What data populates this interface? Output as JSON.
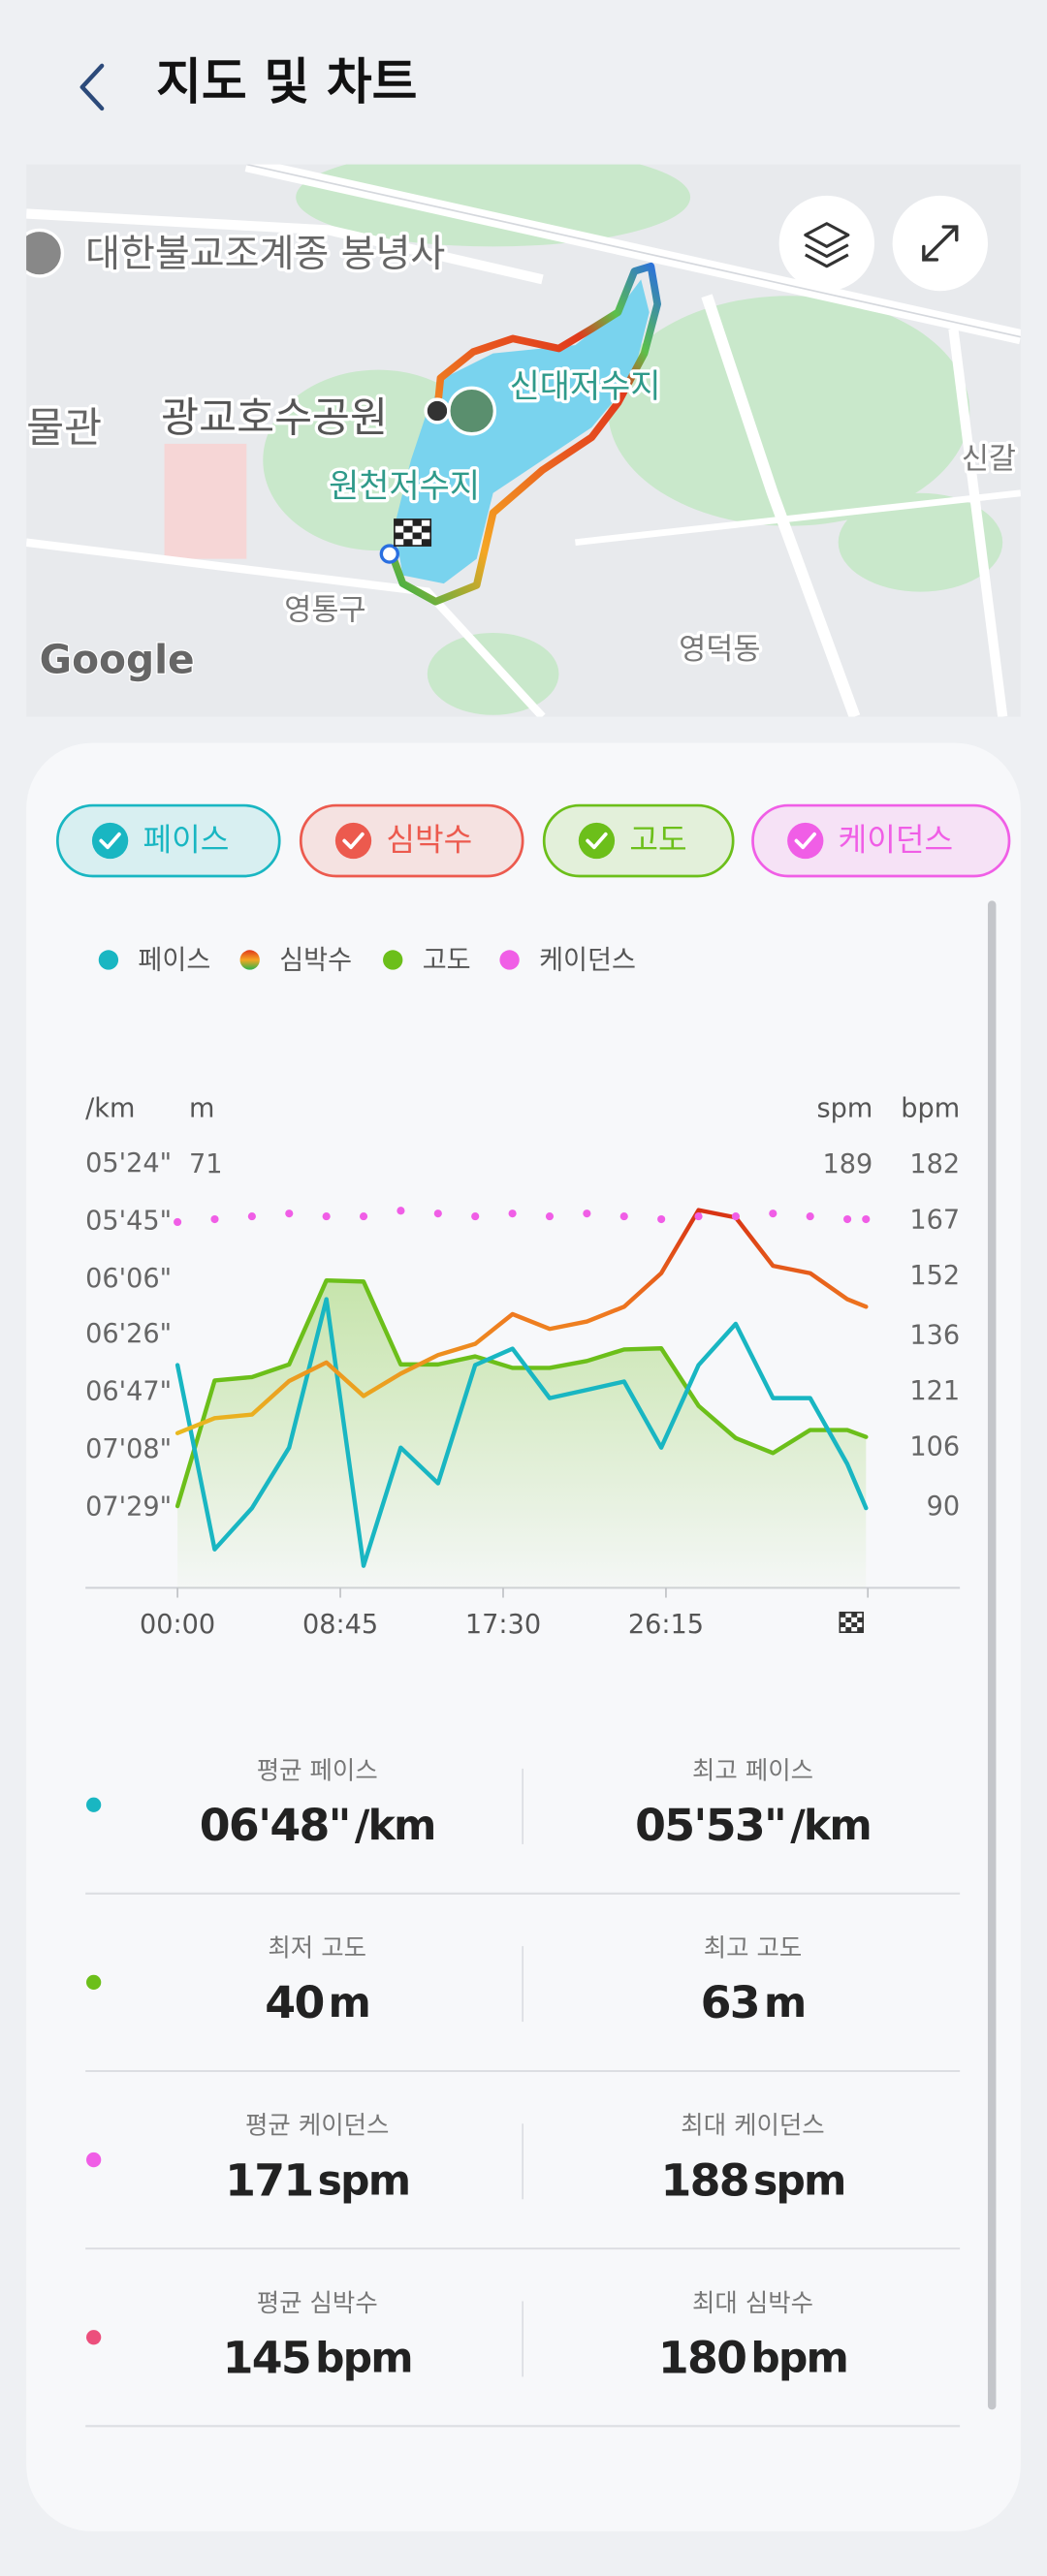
{
  "header": {
    "title": "지도 및 차트"
  },
  "map": {
    "labels": [
      "대한불교조계종 봉녕사",
      "광교호수공원",
      "신대저수지",
      "원천저수지",
      "영통구",
      "영덕동",
      "신갈",
      "물관"
    ],
    "attribution": "Google"
  },
  "chart": {
    "type": "line",
    "x": [
      0,
      2,
      4,
      6,
      8,
      10,
      12,
      14,
      16,
      18,
      20,
      22,
      24,
      26,
      28,
      30,
      32,
      34,
      36,
      37
    ],
    "xlim": [
      0,
      37.1
    ],
    "xticks": [
      {
        "value": 0,
        "label": "00:00"
      },
      {
        "value": 8.75,
        "label": "08:45"
      },
      {
        "value": 17.5,
        "label": "17:30"
      },
      {
        "value": 26.25,
        "label": "26:15"
      }
    ],
    "pace_axis": {
      "unit": "/km",
      "lim": [
        478,
        313
      ],
      "ticks": [
        {
          "value": 324,
          "label": "05'24\""
        },
        {
          "value": 345,
          "label": "05'45\""
        },
        {
          "value": 366,
          "label": "06'06\""
        },
        {
          "value": 386,
          "label": "06'26\""
        },
        {
          "value": 407,
          "label": "06'47\""
        },
        {
          "value": 428,
          "label": "07'08\""
        },
        {
          "value": 449,
          "label": "07'29\""
        }
      ]
    },
    "elevation_axis": {
      "unit": "m",
      "lim": [
        34.3,
        73.7
      ],
      "ticks": [
        71
      ]
    },
    "cadence_axis": {
      "unit": "spm",
      "lim": [
        40,
        200
      ],
      "ticks": [
        189
      ]
    },
    "bpm_axis": {
      "unit": "bpm",
      "lim": [
        68.4,
        190.4
      ],
      "ticks": [
        182,
        167,
        152,
        136,
        121,
        106,
        90
      ]
    },
    "series": [
      {
        "name": "페이스",
        "color": "#19b6c2",
        "axis": "pace_axis",
        "style": "line",
        "values": [
          397,
          464,
          449,
          427,
          373,
          470,
          427,
          440,
          397,
          391,
          409,
          406,
          403,
          427,
          397,
          382,
          409,
          409,
          433,
          449
        ]
      },
      {
        "name": "심박수",
        "color": "#ec5a4e",
        "axis": "bpm_axis",
        "style": "line",
        "values": [
          110,
          114,
          115,
          124,
          129,
          120,
          126,
          131,
          134,
          142,
          138,
          140,
          144,
          153,
          170,
          168,
          155,
          153,
          146,
          144
        ]
      },
      {
        "name": "고도",
        "color": "#6cbf1a",
        "axis": "elevation_axis",
        "style": "area",
        "values": [
          41.4,
          52.3,
          52.6,
          53.7,
          61,
          60.9,
          53.7,
          53.7,
          54.4,
          53.4,
          53.4,
          54,
          55,
          55.1,
          50.1,
          47.3,
          46,
          48,
          48,
          47.4
        ]
      },
      {
        "name": "케이던스",
        "color": "#f05ee6",
        "axis": "cadence_axis",
        "style": "dots",
        "values": [
          169,
          170,
          171,
          172,
          171,
          171,
          173,
          172,
          171,
          172,
          171,
          172,
          171,
          170,
          171,
          171,
          172,
          171,
          170,
          170
        ]
      }
    ]
  },
  "stats": [
    {
      "color": "#19b6c2",
      "items": [
        {
          "label": "평균 페이스",
          "value": "06'48\"",
          "unit": "/km"
        },
        {
          "label": "최고 페이스",
          "value": "05'53\"",
          "unit": "/km"
        }
      ]
    },
    {
      "color": "#6cbf1a",
      "items": [
        {
          "label": "최저 고도",
          "value": "40",
          "unit": "m"
        },
        {
          "label": "최고 고도",
          "value": "63",
          "unit": "m"
        }
      ]
    },
    {
      "color": "#f05ee6",
      "items": [
        {
          "label": "평균 케이던스",
          "value": "171",
          "unit": "spm"
        },
        {
          "label": "최대 케이던스",
          "value": "188",
          "unit": "spm"
        }
      ]
    },
    {
      "color": "#ec4f7c",
      "items": [
        {
          "label": "평균 심박수",
          "value": "145",
          "unit": "bpm"
        },
        {
          "label": "최대 심박수",
          "value": "180",
          "unit": "bpm"
        }
      ]
    }
  ]
}
